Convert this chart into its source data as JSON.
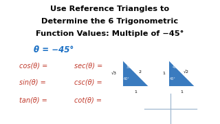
{
  "title_line1": "Use Reference Triangles to",
  "title_line2": "Determine the 6 Trigonometric",
  "title_line3": "Function Values: Multiple of −45°",
  "theta_label": "θ = −45°",
  "trig_labels_col1": [
    "cos(θ) =",
    "sin(θ) =",
    "tan(θ) ="
  ],
  "trig_labels_col2": [
    "sec(θ) =",
    "csc(θ) =",
    "cot(θ) ="
  ],
  "title_color": "#000000",
  "theta_color": "#1a6fc4",
  "trig_color": "#c0392b",
  "bg_color": "#ffffff",
  "triangle_fill": "#3a7bbf",
  "cross_color": "#a0b8d0"
}
